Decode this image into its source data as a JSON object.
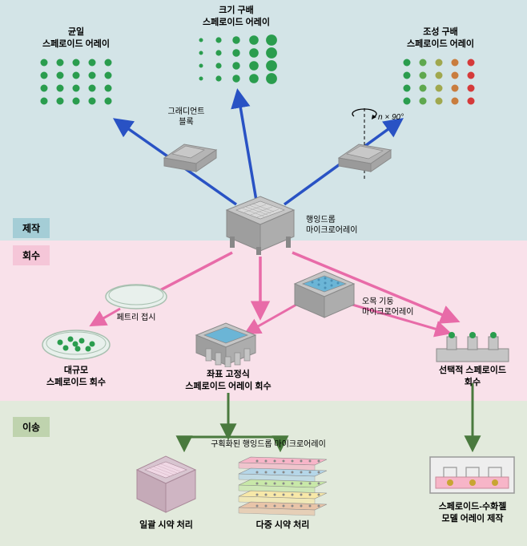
{
  "zones": {
    "fabrication": {
      "label": "제작",
      "bg": "#d3e4e7",
      "badge_bg": "#a4cdd6"
    },
    "recovery": {
      "label": "회수",
      "bg": "#f9e1ea",
      "badge_bg": "#f5c6d8"
    },
    "transfer": {
      "label": "이송",
      "bg": "#e2eadc",
      "badge_bg": "#bfd3ae"
    }
  },
  "arrays": {
    "uniform": {
      "title": "균일\n스페로이드 어레이",
      "dot_color": "#2a9d4e",
      "rows": 4,
      "cols": 5
    },
    "size": {
      "title": "크기 구배\n스페로이드 어레이",
      "dot_color": "#2a9d4e",
      "rows": 4,
      "cols": 5
    },
    "comp": {
      "title": "조성 구배\n스페로이드 어레이",
      "rows": 4,
      "cols": 5,
      "col_colors": [
        "#2a9d4e",
        "#5fa84e",
        "#a0a84e",
        "#c97d3e",
        "#d53a3a"
      ]
    }
  },
  "devices": {
    "gradient_block": "그래디언트\n블록",
    "hanging_drop": "행잉드롭\n마이크로어레이",
    "petri": "페트리 접시",
    "concave": "오목 기둥\n마이크로어레이",
    "rotation": "n × 90°"
  },
  "recovery_labels": {
    "bulk": "대규모\n스페로이드 회수",
    "coord": "좌표 고정식\n스페로이드 어레이 회수",
    "selective": "선택적 스페로이드\n회수"
  },
  "transfer_labels": {
    "compartment": "구획화된 행잉드롭 마이크로어레이",
    "batch": "일괄 시약 처리",
    "multi": "다중 시약 처리",
    "hydrogel": "스페로이드-수화젤\n모델 어레이 제작"
  },
  "colors": {
    "blue_arrow": "#2952c4",
    "pink_arrow": "#e86ba8",
    "green_arrow": "#4a7a3e",
    "device_gray": "#b5b5b5",
    "device_dark": "#8a8a8a",
    "blue_fill": "#6bb5d6",
    "petri_fill": "#e8f0ec",
    "petri_stroke": "#a8c0b0"
  },
  "multi_colors": [
    "#f7b5c8",
    "#b5d6e8",
    "#c8e8a8",
    "#f7e8a8",
    "#e8c4a8"
  ]
}
